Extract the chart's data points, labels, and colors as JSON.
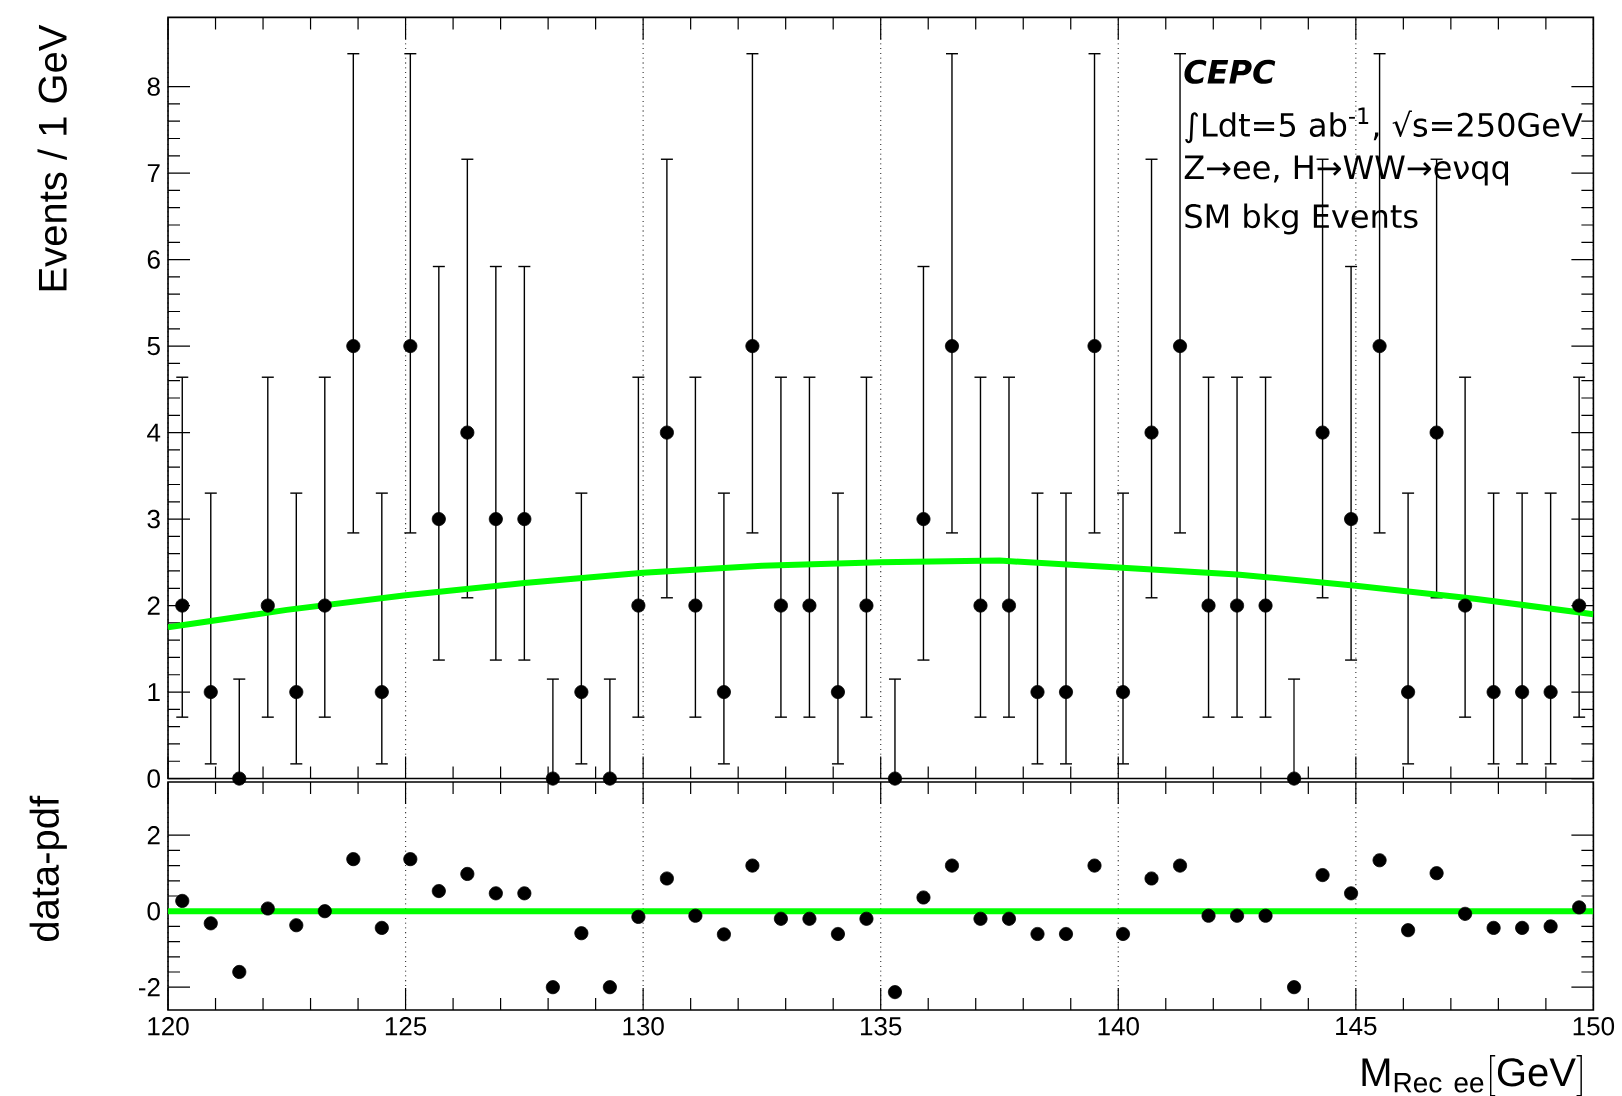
{
  "chart_data": [
    {
      "type": "scatter",
      "ylabel": "Events / 1 GeV",
      "annotations": [
        "CEPC",
        "∫Ldt=5 ab$^{-1}$, √s=250GeV",
        "Z→ee, H→WW→eνqq",
        "SM bkg Events"
      ],
      "x": [
        120.3,
        120.9,
        121.5,
        122.1,
        122.7,
        123.3,
        123.9,
        124.5,
        125.1,
        125.7,
        126.3,
        126.9,
        127.5,
        128.1,
        128.7,
        129.3,
        129.9,
        130.5,
        131.1,
        131.7,
        132.3,
        132.9,
        133.5,
        134.1,
        134.7,
        135.3,
        135.9,
        136.5,
        137.1,
        137.7,
        138.3,
        138.9,
        139.5,
        140.1,
        140.7,
        141.3,
        141.9,
        142.5,
        143.1,
        143.7,
        144.3,
        144.9,
        145.5,
        146.1,
        146.7,
        147.3,
        147.9,
        148.5,
        149.1,
        149.7
      ],
      "series": [
        {
          "color": "#000000",
          "marker": "circle",
          "values": [
            2,
            1,
            0,
            2,
            1,
            2,
            5,
            1,
            5,
            3,
            4,
            3,
            3,
            0,
            1,
            0,
            2,
            4,
            2,
            1,
            5,
            2,
            2,
            1,
            2,
            0,
            3,
            5,
            2,
            2,
            1,
            1,
            5,
            1,
            4,
            5,
            2,
            2,
            2,
            0,
            4,
            3,
            5,
            1,
            4,
            2,
            1,
            1,
            1,
            2
          ],
          "errors": [
            [
              0.71,
              4.64
            ],
            [
              0.17,
              3.3
            ],
            [
              0,
              1.15
            ],
            [
              0.71,
              4.64
            ],
            [
              0.17,
              3.3
            ],
            [
              0.71,
              4.64
            ],
            [
              2.84,
              8.38
            ],
            [
              0.17,
              3.3
            ],
            [
              2.84,
              8.38
            ],
            [
              1.37,
              5.92
            ],
            [
              2.09,
              7.16
            ],
            [
              1.37,
              5.92
            ],
            [
              1.37,
              5.92
            ],
            [
              0,
              1.15
            ],
            [
              0.17,
              3.3
            ],
            [
              0,
              1.15
            ],
            [
              0.71,
              4.64
            ],
            [
              2.09,
              7.16
            ],
            [
              0.71,
              4.64
            ],
            [
              0.17,
              3.3
            ],
            [
              2.84,
              8.38
            ],
            [
              0.71,
              4.64
            ],
            [
              0.71,
              4.64
            ],
            [
              0.17,
              3.3
            ],
            [
              0.71,
              4.64
            ],
            [
              0,
              1.15
            ],
            [
              1.37,
              5.92
            ],
            [
              2.84,
              8.38
            ],
            [
              0.71,
              4.64
            ],
            [
              0.71,
              4.64
            ],
            [
              0.17,
              3.3
            ],
            [
              0.17,
              3.3
            ],
            [
              2.84,
              8.38
            ],
            [
              0.17,
              3.3
            ],
            [
              2.09,
              7.16
            ],
            [
              2.84,
              8.38
            ],
            [
              0.71,
              4.64
            ],
            [
              0.71,
              4.64
            ],
            [
              0.71,
              4.64
            ],
            [
              0,
              1.15
            ],
            [
              2.09,
              7.16
            ],
            [
              1.37,
              5.92
            ],
            [
              2.84,
              8.38
            ],
            [
              0.17,
              3.3
            ],
            [
              2.09,
              7.16
            ],
            [
              0.71,
              4.64
            ],
            [
              0.17,
              3.3
            ],
            [
              0.17,
              3.3
            ],
            [
              0.17,
              3.3
            ],
            [
              0.71,
              4.64
            ]
          ]
        },
        {
          "type": "line",
          "color": "#00ff00",
          "x": [
            120,
            122.5,
            125,
            127.5,
            130,
            132.5,
            135,
            137.5,
            140,
            142.5,
            145,
            147.5,
            150
          ],
          "values": [
            1.75,
            1.95,
            2.12,
            2.26,
            2.38,
            2.46,
            2.5,
            2.52,
            2.44,
            2.36,
            2.23,
            2.08,
            1.9
          ]
        }
      ],
      "xlim": [
        120,
        150
      ],
      "ylim": [
        0,
        8.8
      ],
      "xticks": [
        120,
        125,
        130,
        135,
        140,
        145,
        150
      ],
      "yticks": [
        0,
        1,
        2,
        3,
        4,
        5,
        6,
        7,
        8
      ],
      "grid": "x",
      "tick_labels": "y"
    },
    {
      "type": "scatter",
      "xlabel": "\\mathrm{M}_{\\mathrm{Rec\\ ee}}[\\mathrm{GeV}]",
      "ylabel": "data-pdf",
      "x": [
        120.3,
        120.9,
        121.5,
        122.1,
        122.7,
        123.3,
        123.9,
        124.5,
        125.1,
        125.7,
        126.3,
        126.9,
        127.5,
        128.1,
        128.7,
        129.3,
        129.9,
        130.5,
        131.1,
        131.7,
        132.3,
        132.9,
        133.5,
        134.1,
        134.7,
        135.3,
        135.9,
        136.5,
        137.1,
        137.7,
        138.3,
        138.9,
        139.5,
        140.1,
        140.7,
        141.3,
        141.9,
        142.5,
        143.1,
        143.7,
        144.3,
        144.9,
        145.5,
        146.1,
        146.7,
        147.3,
        147.9,
        148.5,
        149.1,
        149.7
      ],
      "series": [
        {
          "color": "#000000",
          "marker": "circle",
          "values": [
            0.27,
            -0.32,
            -1.6,
            0.07,
            -0.37,
            0,
            1.37,
            -0.44,
            1.37,
            0.53,
            0.98,
            0.47,
            0.47,
            -2.0,
            -0.58,
            -2.0,
            -0.15,
            0.86,
            -0.12,
            -0.61,
            1.2,
            -0.2,
            -0.2,
            -0.6,
            -0.2,
            -2.13,
            0.36,
            1.2,
            -0.2,
            -0.2,
            -0.6,
            -0.6,
            1.2,
            -0.6,
            0.86,
            1.2,
            -0.12,
            -0.12,
            -0.12,
            -2.0,
            0.95,
            0.47,
            1.34,
            -0.5,
            1.0,
            -0.07,
            -0.44,
            -0.44,
            -0.4,
            0.1
          ]
        },
        {
          "type": "line",
          "color": "#00ff00",
          "x": [
            120,
            150
          ],
          "values": [
            0,
            0
          ]
        }
      ],
      "xlim": [
        120,
        150
      ],
      "ylim": [
        -2.6,
        3.4
      ],
      "xticks": [
        120,
        125,
        130,
        135,
        140,
        145,
        150
      ],
      "yticks": [
        -2,
        0,
        2
      ],
      "grid": "x"
    }
  ]
}
